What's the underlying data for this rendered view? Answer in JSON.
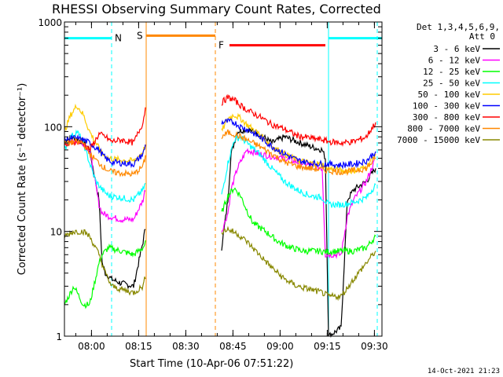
{
  "chart_data": {
    "type": "line",
    "title": "RHESSI Observing Summary Count Rates, Corrected",
    "xlabel": "Start Time (10-Apr-06 07:51:22)",
    "ylabel": "Corrected Count Rate (s⁻¹ detector⁻¹)",
    "y_scale": "log",
    "ylim": [
      1,
      1000
    ],
    "xlim_minutes": [
      0,
      101
    ],
    "x_ticks": [
      {
        "label": "08:00",
        "t": 8.6
      },
      {
        "label": "08:15",
        "t": 23.6
      },
      {
        "label": "08:30",
        "t": 38.6
      },
      {
        "label": "08:45",
        "t": 53.6
      },
      {
        "label": "09:00",
        "t": 68.6
      },
      {
        "label": "09:15",
        "t": 83.6
      },
      {
        "label": "09:30",
        "t": 98.6
      }
    ],
    "y_ticks": [
      {
        "label": "1",
        "v": 1
      },
      {
        "label": "10",
        "v": 10
      },
      {
        "label": "100",
        "v": 100
      },
      {
        "label": "1000",
        "v": 1000
      }
    ],
    "legend_header": [
      "Det 1,3,4,5,6,9,",
      "Att 0"
    ],
    "legend_placement": "right",
    "flags": [
      {
        "label": "N",
        "color": "#00ffff",
        "y": 700,
        "t_start": 0,
        "t_end": 15,
        "marker_t": 15,
        "label_t": 16
      },
      {
        "label": "N",
        "color": "#00ffff",
        "y": 700,
        "t_start": 84,
        "t_end": 101,
        "marker_t": 84,
        "label_t": -1
      },
      {
        "label": "S",
        "color": "#ff8800",
        "y": 740,
        "t_start": 26,
        "t_end": 48,
        "marker_t": 26,
        "label_t": 23
      },
      {
        "label": "F",
        "color": "#ff0000",
        "y": 600,
        "t_start": 52.5,
        "t_end": 83,
        "marker_t": 48,
        "label_t": 49
      }
    ],
    "vlines": [
      {
        "t": 15,
        "color": "#00ffff",
        "dashed": true
      },
      {
        "t": 26,
        "color": "#ff8800",
        "dashed": false
      },
      {
        "t": 48,
        "color": "#ff8800",
        "dashed": true
      },
      {
        "t": 84,
        "color": "#00ffff",
        "dashed": false
      },
      {
        "t": 99.5,
        "color": "#00ffff",
        "dashed": true
      }
    ],
    "series": [
      {
        "name": "3 - 6 keV",
        "color": "#000000",
        "points": [
          [
            0,
            75
          ],
          [
            3,
            78
          ],
          [
            6,
            72
          ],
          [
            8,
            60
          ],
          [
            11,
            20
          ],
          [
            12,
            5
          ],
          [
            13,
            4
          ],
          [
            15,
            3.5
          ],
          [
            18,
            3.2
          ],
          [
            22,
            3
          ],
          [
            25,
            8
          ],
          [
            26,
            12
          ],
          [
            50,
            7
          ],
          [
            52,
            20
          ],
          [
            53,
            55
          ],
          [
            55,
            90
          ],
          [
            58,
            95
          ],
          [
            62,
            85
          ],
          [
            66,
            70
          ],
          [
            70,
            80
          ],
          [
            74,
            72
          ],
          [
            78,
            65
          ],
          [
            82,
            60
          ],
          [
            83,
            50
          ],
          [
            84,
            1
          ],
          [
            88,
            1.2
          ],
          [
            90,
            20
          ],
          [
            92,
            25
          ],
          [
            96,
            30
          ],
          [
            99,
            40
          ]
        ]
      },
      {
        "name": "6 - 12 keV",
        "color": "#ff00ff",
        "points": [
          [
            0,
            70
          ],
          [
            3,
            74
          ],
          [
            6,
            70
          ],
          [
            8,
            60
          ],
          [
            11,
            18
          ],
          [
            12,
            15
          ],
          [
            14,
            14
          ],
          [
            18,
            13
          ],
          [
            22,
            13
          ],
          [
            25,
            20
          ],
          [
            26,
            28
          ],
          [
            50,
            10
          ],
          [
            52,
            15
          ],
          [
            53,
            25
          ],
          [
            55,
            40
          ],
          [
            58,
            60
          ],
          [
            62,
            55
          ],
          [
            66,
            52
          ],
          [
            70,
            50
          ],
          [
            74,
            46
          ],
          [
            78,
            43
          ],
          [
            82,
            40
          ],
          [
            83,
            6
          ],
          [
            88,
            6
          ],
          [
            90,
            14
          ],
          [
            92,
            20
          ],
          [
            96,
            30
          ],
          [
            99,
            50
          ]
        ]
      },
      {
        "name": "12 - 25 keV",
        "color": "#00ff00",
        "points": [
          [
            0,
            2
          ],
          [
            3,
            3
          ],
          [
            6,
            2
          ],
          [
            8,
            2
          ],
          [
            11,
            5
          ],
          [
            12,
            6
          ],
          [
            14,
            7
          ],
          [
            18,
            6.5
          ],
          [
            22,
            6
          ],
          [
            25,
            7
          ],
          [
            26,
            8
          ],
          [
            50,
            15
          ],
          [
            52,
            22
          ],
          [
            54,
            26
          ],
          [
            56,
            22
          ],
          [
            58,
            16
          ],
          [
            60,
            12
          ],
          [
            64,
            10
          ],
          [
            68,
            8
          ],
          [
            72,
            7
          ],
          [
            76,
            6.5
          ],
          [
            80,
            6.5
          ],
          [
            83,
            6.4
          ],
          [
            88,
            6.5
          ],
          [
            92,
            6.5
          ],
          [
            96,
            7
          ],
          [
            99,
            9
          ]
        ]
      },
      {
        "name": "25 - 50 keV",
        "color": "#00ffff",
        "points": [
          [
            0,
            60
          ],
          [
            2,
            80
          ],
          [
            4,
            90
          ],
          [
            6,
            70
          ],
          [
            8,
            45
          ],
          [
            10,
            30
          ],
          [
            12,
            25
          ],
          [
            14,
            22
          ],
          [
            18,
            21
          ],
          [
            22,
            20
          ],
          [
            25,
            25
          ],
          [
            26,
            30
          ],
          [
            50,
            22
          ],
          [
            52,
            45
          ],
          [
            54,
            75
          ],
          [
            56,
            80
          ],
          [
            58,
            70
          ],
          [
            62,
            55
          ],
          [
            66,
            40
          ],
          [
            70,
            30
          ],
          [
            74,
            25
          ],
          [
            78,
            22
          ],
          [
            82,
            21
          ],
          [
            84,
            18
          ],
          [
            88,
            18
          ],
          [
            92,
            19
          ],
          [
            96,
            21
          ],
          [
            99,
            28
          ]
        ]
      },
      {
        "name": "50 - 100 keV",
        "color": "#ffcc00",
        "points": [
          [
            0,
            90
          ],
          [
            2,
            130
          ],
          [
            4,
            160
          ],
          [
            6,
            130
          ],
          [
            8,
            90
          ],
          [
            10,
            70
          ],
          [
            12,
            55
          ],
          [
            14,
            50
          ],
          [
            18,
            48
          ],
          [
            22,
            47
          ],
          [
            25,
            58
          ],
          [
            26,
            70
          ],
          [
            50,
            90
          ],
          [
            52,
            120
          ],
          [
            54,
            130
          ],
          [
            56,
            120
          ],
          [
            58,
            105
          ],
          [
            62,
            85
          ],
          [
            66,
            65
          ],
          [
            70,
            55
          ],
          [
            74,
            48
          ],
          [
            78,
            45
          ],
          [
            82,
            44
          ],
          [
            84,
            40
          ],
          [
            88,
            38
          ],
          [
            92,
            38
          ],
          [
            96,
            41
          ],
          [
            99,
            55
          ]
        ]
      },
      {
        "name": "100 - 300 keV",
        "color": "#0000ff",
        "points": [
          [
            0,
            75
          ],
          [
            3,
            78
          ],
          [
            6,
            75
          ],
          [
            8,
            70
          ],
          [
            11,
            60
          ],
          [
            13,
            50
          ],
          [
            15,
            46
          ],
          [
            18,
            45
          ],
          [
            22,
            44
          ],
          [
            25,
            55
          ],
          [
            26,
            70
          ],
          [
            50,
            110
          ],
          [
            52,
            112
          ],
          [
            54,
            110
          ],
          [
            56,
            100
          ],
          [
            58,
            95
          ],
          [
            62,
            80
          ],
          [
            66,
            65
          ],
          [
            70,
            55
          ],
          [
            74,
            48
          ],
          [
            78,
            45
          ],
          [
            82,
            44
          ],
          [
            84,
            44
          ],
          [
            88,
            43
          ],
          [
            92,
            44
          ],
          [
            96,
            47
          ],
          [
            99,
            58
          ]
        ]
      },
      {
        "name": "300 - 800 keV",
        "color": "#ff0000",
        "points": [
          [
            0,
            65
          ],
          [
            3,
            72
          ],
          [
            6,
            70
          ],
          [
            8,
            60
          ],
          [
            11,
            85
          ],
          [
            13,
            80
          ],
          [
            15,
            72
          ],
          [
            18,
            75
          ],
          [
            22,
            70
          ],
          [
            25,
            110
          ],
          [
            26,
            170
          ],
          [
            50,
            170
          ],
          [
            52,
            190
          ],
          [
            54,
            180
          ],
          [
            56,
            160
          ],
          [
            58,
            145
          ],
          [
            62,
            125
          ],
          [
            66,
            105
          ],
          [
            70,
            95
          ],
          [
            74,
            82
          ],
          [
            78,
            78
          ],
          [
            82,
            75
          ],
          [
            84,
            72
          ],
          [
            88,
            70
          ],
          [
            92,
            72
          ],
          [
            96,
            80
          ],
          [
            99,
            110
          ]
        ]
      },
      {
        "name": "800 - 7000 keV",
        "color": "#ff8800",
        "points": [
          [
            0,
            68
          ],
          [
            3,
            72
          ],
          [
            6,
            70
          ],
          [
            8,
            55
          ],
          [
            11,
            45
          ],
          [
            13,
            40
          ],
          [
            15,
            37
          ],
          [
            18,
            36
          ],
          [
            22,
            35
          ],
          [
            25,
            42
          ],
          [
            26,
            55
          ],
          [
            50,
            80
          ],
          [
            52,
            88
          ],
          [
            54,
            85
          ],
          [
            56,
            80
          ],
          [
            58,
            75
          ],
          [
            62,
            65
          ],
          [
            66,
            55
          ],
          [
            70,
            46
          ],
          [
            74,
            42
          ],
          [
            78,
            40
          ],
          [
            82,
            39
          ],
          [
            84,
            38
          ],
          [
            88,
            37
          ],
          [
            92,
            38
          ],
          [
            96,
            40
          ],
          [
            99,
            50
          ]
        ]
      },
      {
        "name": "7000 - 15000 keV",
        "color": "#888800",
        "points": [
          [
            0,
            9
          ],
          [
            3,
            10
          ],
          [
            6,
            10
          ],
          [
            8,
            9
          ],
          [
            11,
            6
          ],
          [
            13,
            4
          ],
          [
            15,
            3
          ],
          [
            18,
            2.8
          ],
          [
            22,
            2.6
          ],
          [
            25,
            3
          ],
          [
            26,
            4
          ],
          [
            50,
            10
          ],
          [
            52,
            10.5
          ],
          [
            55,
            9.5
          ],
          [
            58,
            8
          ],
          [
            62,
            6
          ],
          [
            66,
            4.5
          ],
          [
            70,
            3.5
          ],
          [
            74,
            3
          ],
          [
            78,
            2.8
          ],
          [
            82,
            2.6
          ],
          [
            84,
            2.4
          ],
          [
            88,
            2.4
          ],
          [
            92,
            3.5
          ],
          [
            96,
            5
          ],
          [
            99,
            6.5
          ]
        ]
      }
    ]
  },
  "footer": {
    "timestamp": "14-Oct-2021 21:23"
  }
}
